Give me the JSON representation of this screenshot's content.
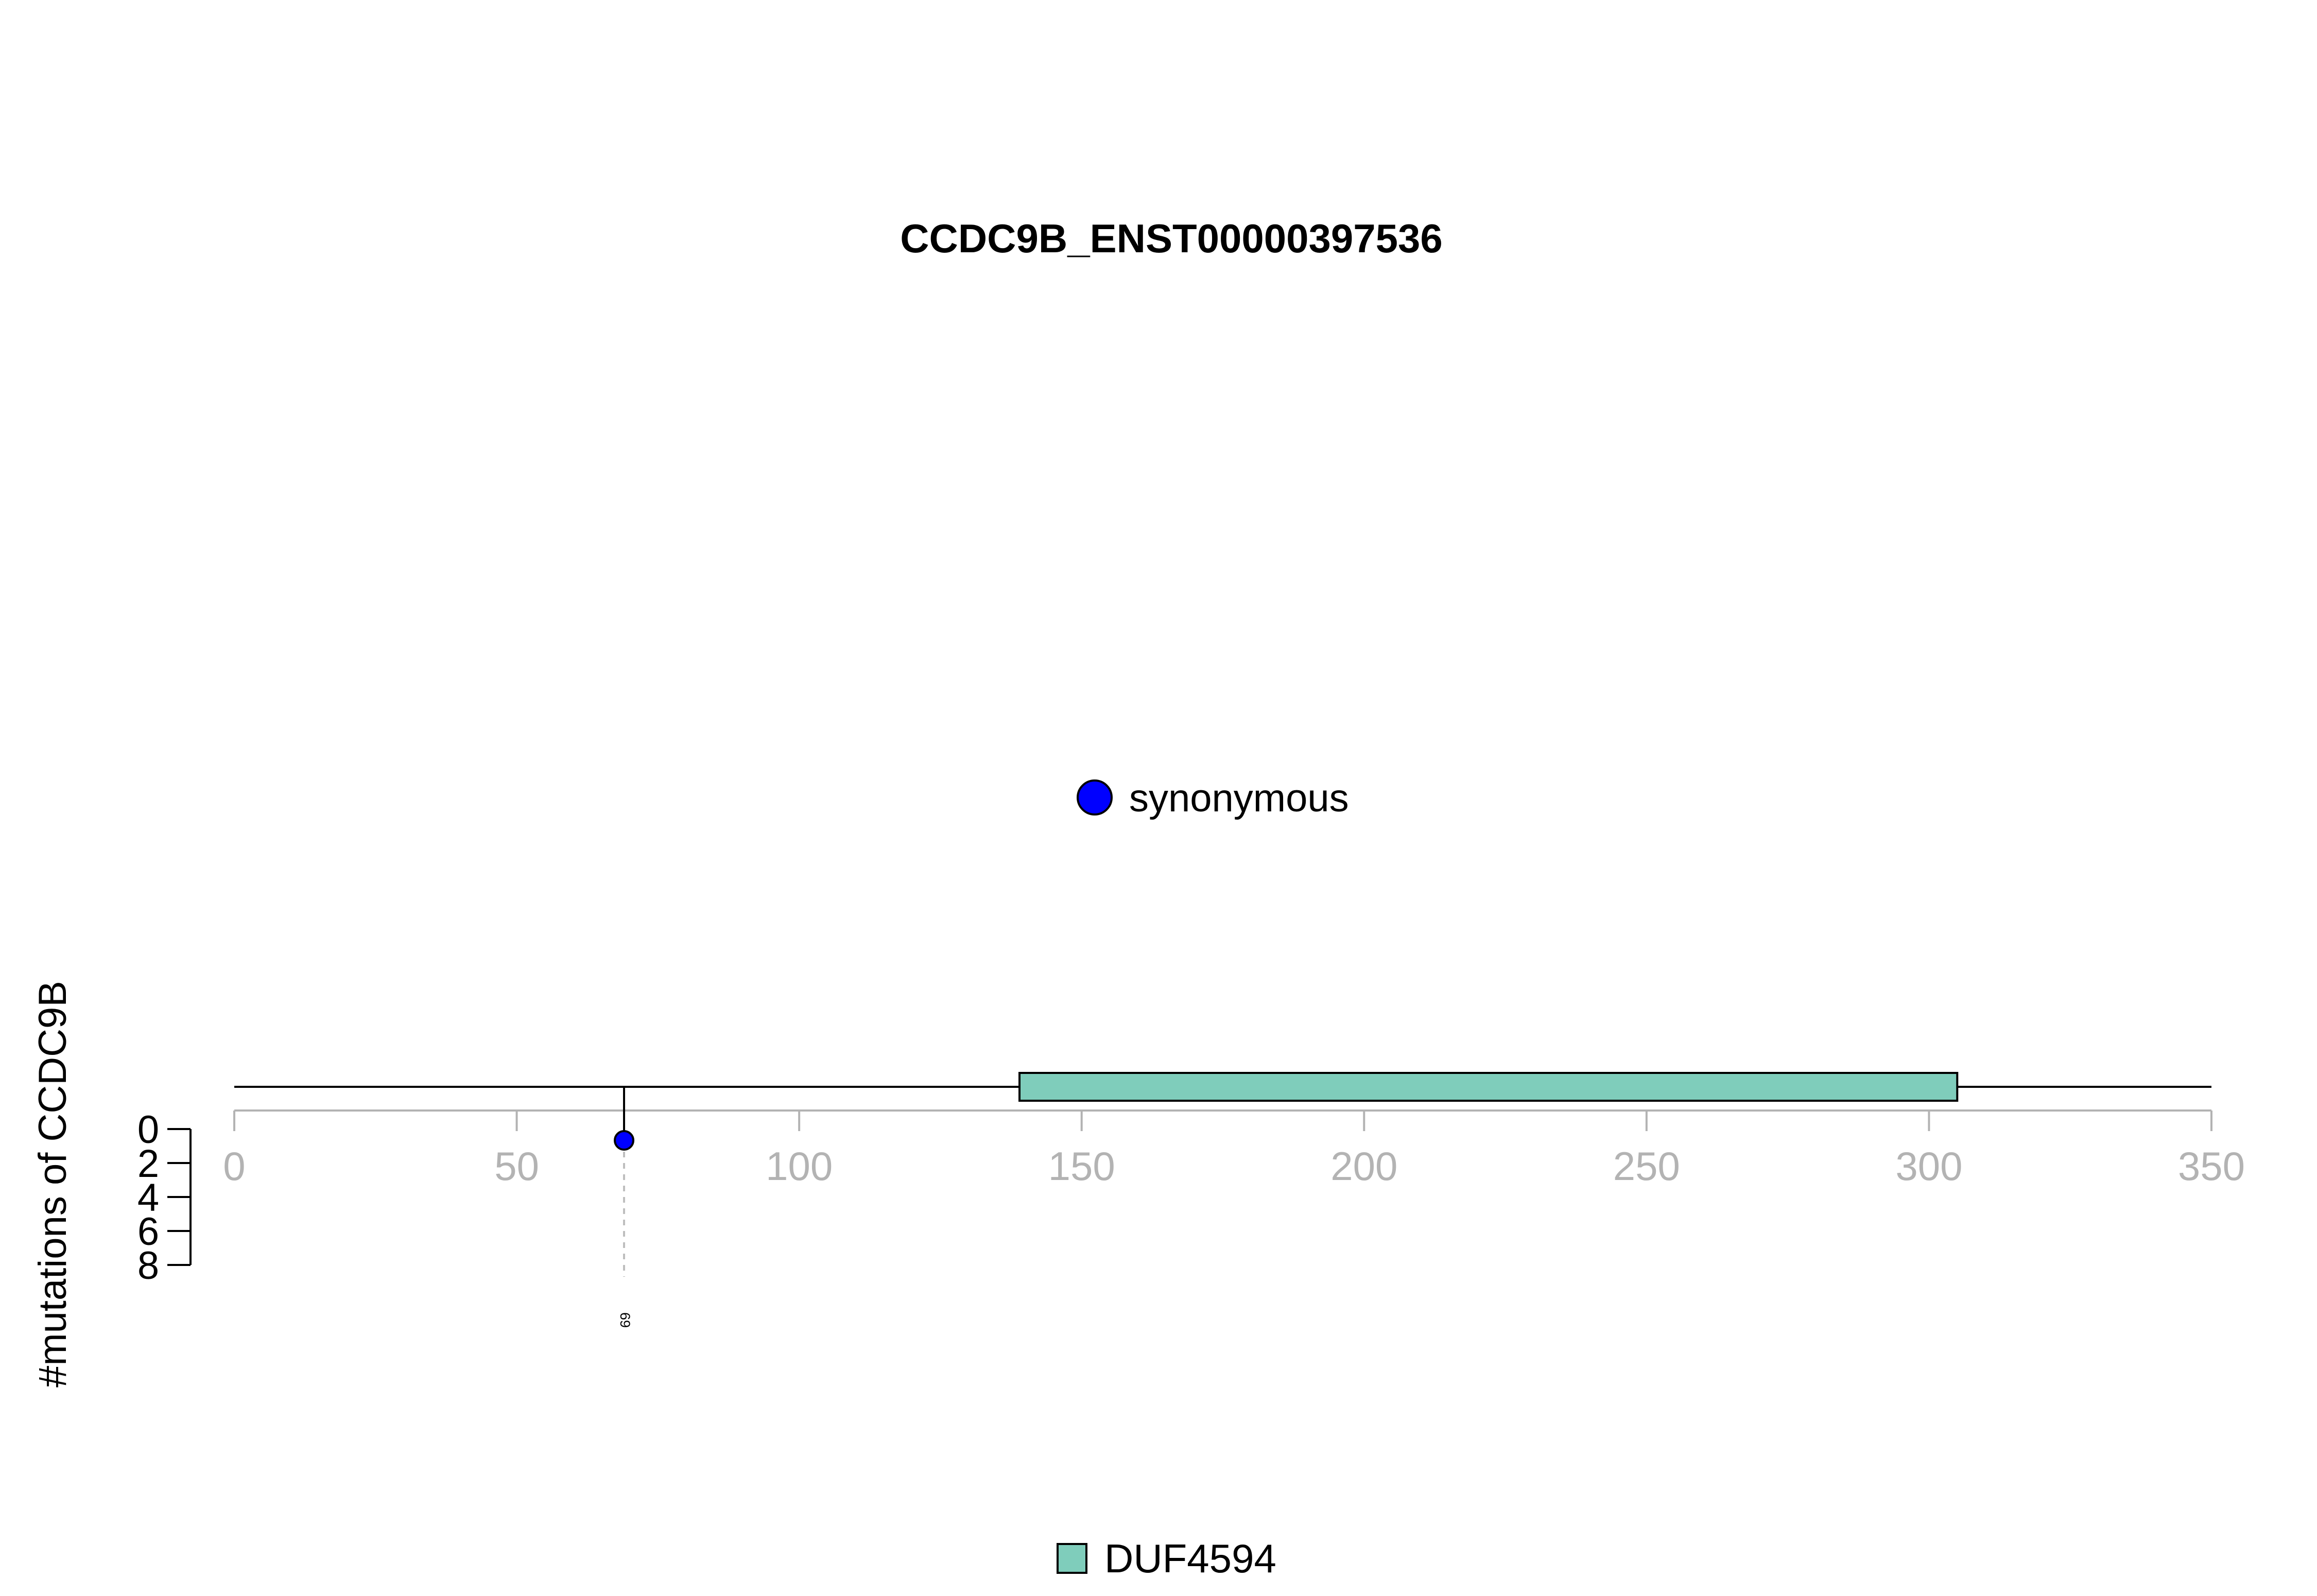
{
  "chart_data": {
    "type": "lollipop",
    "title": "CCDC9B_ENST00000397536",
    "ylabel": "#mutations of CCDC9B",
    "xlim": [
      0,
      350
    ],
    "x_ticks": [
      0,
      50,
      100,
      150,
      200,
      250,
      300,
      350
    ],
    "y_ticks": [
      0,
      2,
      4,
      6,
      8
    ],
    "ylim": [
      0,
      8
    ],
    "protein_length": 350,
    "mutations": [
      {
        "position": 69,
        "count": 1,
        "type": "synonymous",
        "label": "69"
      }
    ],
    "domains": [
      {
        "name": "DUF4594",
        "start": 139,
        "end": 305
      }
    ],
    "mutation_legend": [
      {
        "label": "synonymous",
        "color": "#0000ff"
      }
    ],
    "domain_legend": [
      {
        "label": "DUF4594",
        "color": "#7fcdbb"
      }
    ],
    "colors": {
      "synonymous": "#0000ff",
      "domain": "#7fcdbb",
      "axis_x": "#b3b3b3",
      "axis_y": "#000000",
      "dashed_guide": "#bebebe"
    }
  }
}
